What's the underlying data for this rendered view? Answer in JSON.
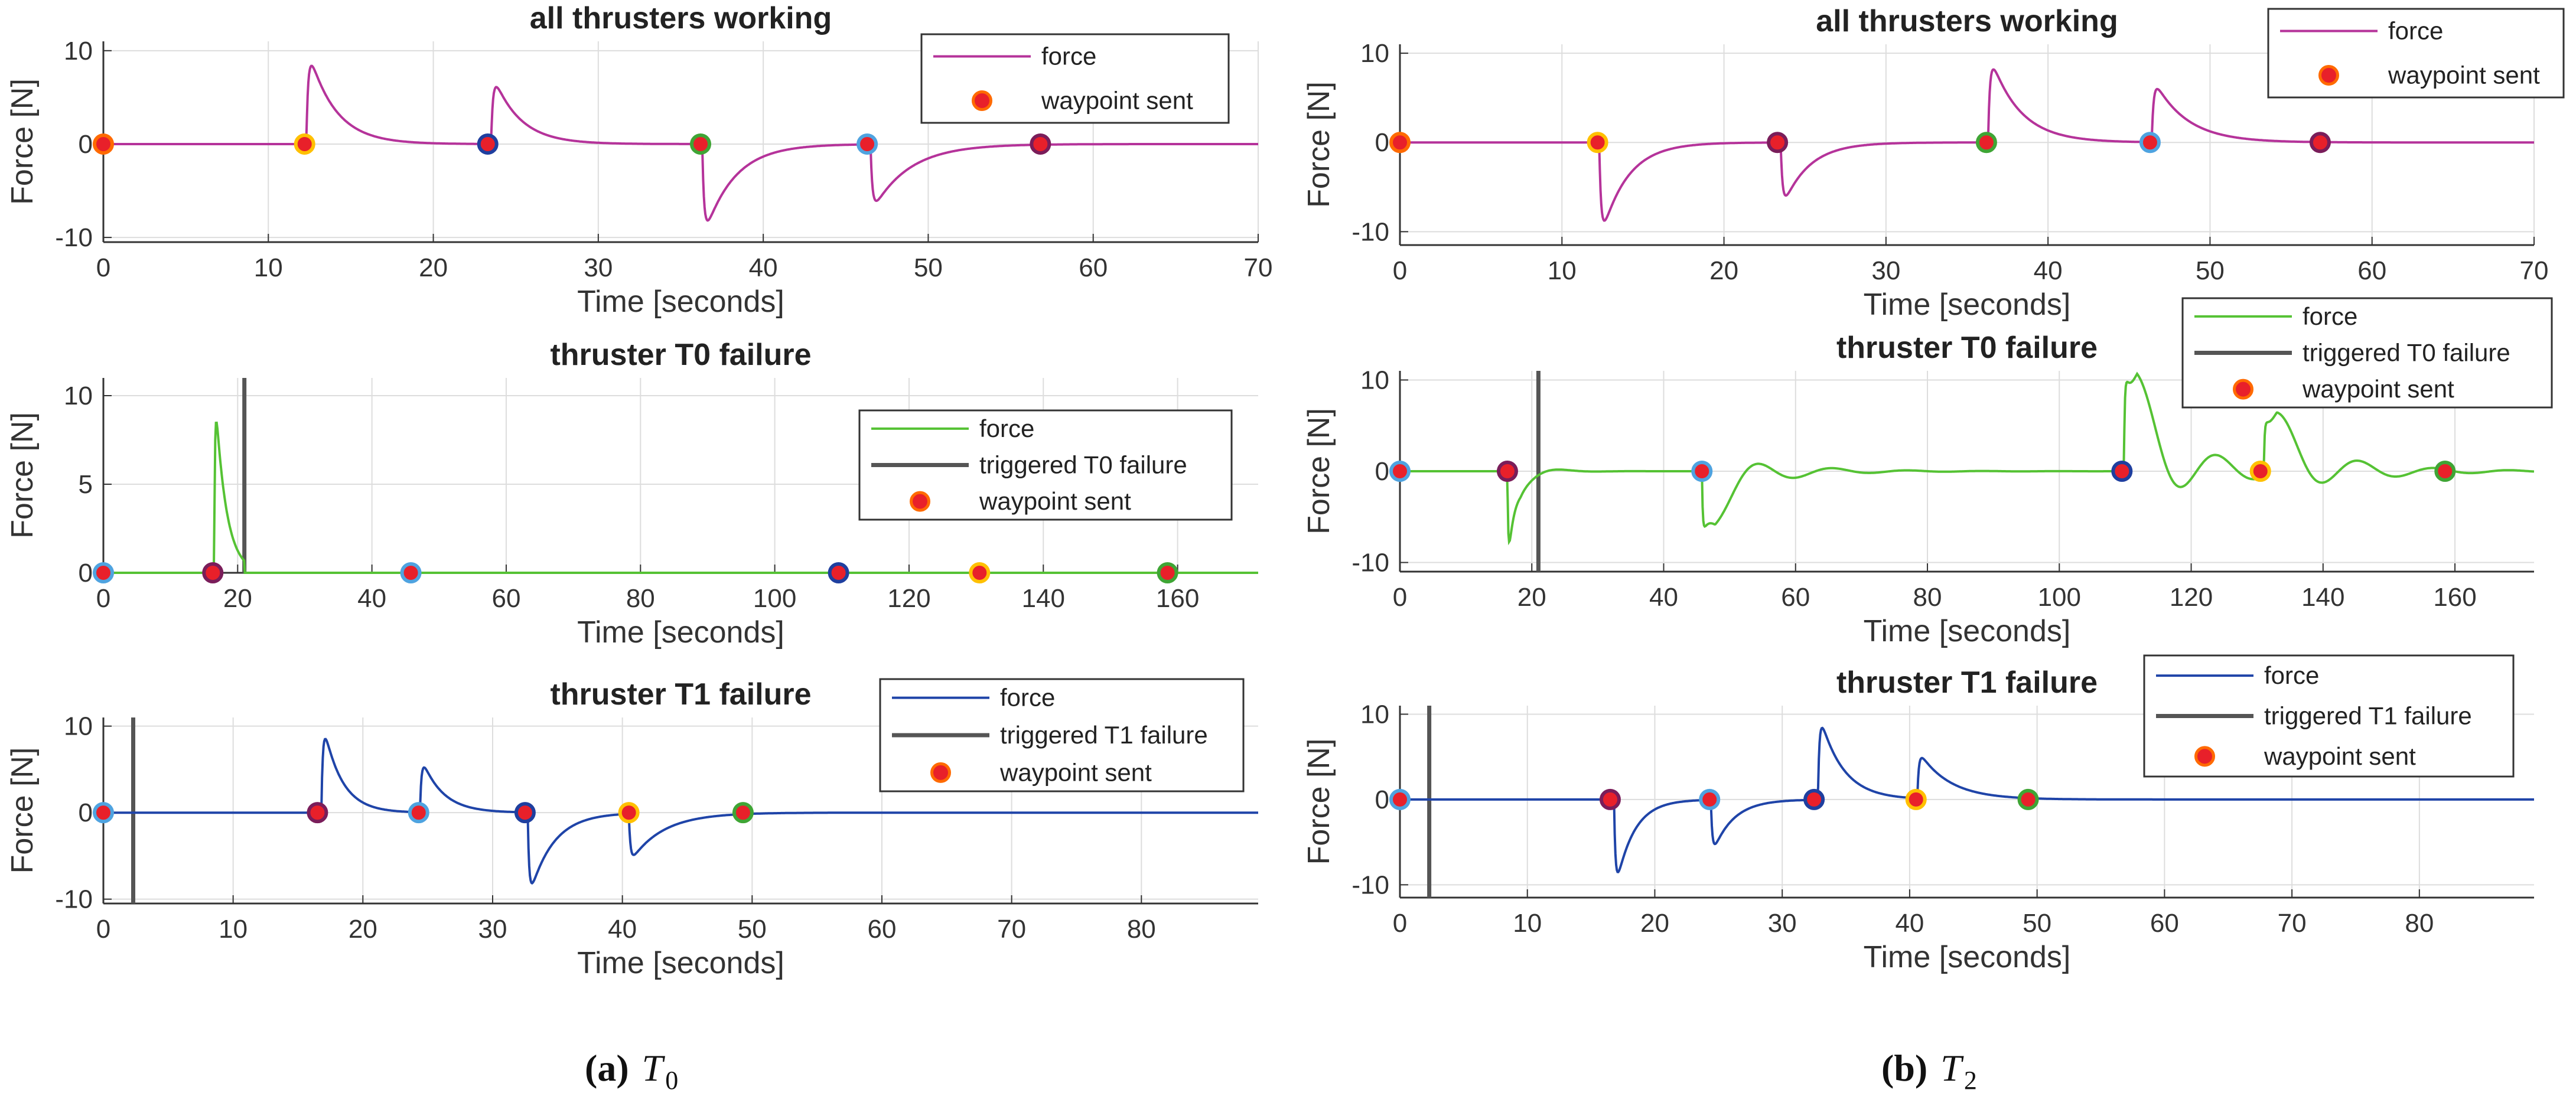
{
  "chart_data": [
    {
      "type": "line",
      "panel": "a",
      "title": "all thrusters working",
      "xlabel": "Time [seconds]",
      "ylabel": "Force [N]",
      "xlim": [
        0,
        70
      ],
      "ylim": [
        -10.5,
        11
      ],
      "xticks": [
        0,
        10,
        20,
        30,
        40,
        50,
        60,
        70
      ],
      "yticks": [
        -10,
        0,
        10
      ],
      "grid": true,
      "legend": {
        "position": "top-right",
        "entries": [
          "force",
          "waypoint sent"
        ]
      },
      "series": [
        {
          "name": "force",
          "color": "#b5339a",
          "pulses": [
            {
              "t": 12.3,
              "amp": 11,
              "tau": 1.6
            },
            {
              "t": 23.5,
              "amp": 8,
              "tau": 1.6
            },
            {
              "t": 36.3,
              "amp": -10.5,
              "tau": 1.8
            },
            {
              "t": 46.5,
              "amp": -7.5,
              "tau": 2.2
            }
          ]
        }
      ],
      "waypoints": [
        {
          "x": 0,
          "y": 0,
          "ring": "#ff6a00"
        },
        {
          "x": 12.2,
          "y": 0,
          "ring": "#ffc000"
        },
        {
          "x": 23.3,
          "y": 0,
          "ring": "#1f3f9f"
        },
        {
          "x": 36.2,
          "y": 0,
          "ring": "#3fa535"
        },
        {
          "x": 46.3,
          "y": 0,
          "ring": "#4fa3e0"
        },
        {
          "x": 56.8,
          "y": 0,
          "ring": "#7a1d5a"
        }
      ]
    },
    {
      "type": "line",
      "panel": "a",
      "title": "thruster T0 failure",
      "xlabel": "Time [seconds]",
      "ylabel": "Force [N]",
      "xlim": [
        0,
        172
      ],
      "ylim": [
        0,
        11
      ],
      "xticks": [
        0,
        20,
        40,
        60,
        80,
        100,
        120,
        140,
        160
      ],
      "yticks": [
        0,
        5,
        10
      ],
      "grid": true,
      "legend": {
        "position": "right",
        "entries": [
          "force",
          "triggered T0 failure",
          "waypoint sent"
        ]
      },
      "failure_time": 21,
      "series": [
        {
          "name": "force",
          "color": "#55c234",
          "pulses": [
            {
              "t": 16.5,
              "amp": 11.2,
              "tau": 1.6
            }
          ],
          "cutoff": 21
        }
      ],
      "waypoints": [
        {
          "x": 0,
          "y": 0,
          "ring": "#4fa3e0"
        },
        {
          "x": 16.3,
          "y": 0,
          "ring": "#7a1d5a"
        },
        {
          "x": 45.8,
          "y": 0,
          "ring": "#4fa3e0"
        },
        {
          "x": 109.5,
          "y": 0,
          "ring": "#1f3f9f"
        },
        {
          "x": 130.5,
          "y": 0,
          "ring": "#ffc000"
        },
        {
          "x": 158.5,
          "y": 0,
          "ring": "#3fa535"
        }
      ]
    },
    {
      "type": "line",
      "panel": "a",
      "title": "thruster T1 failure",
      "xlabel": "Time [seconds]",
      "ylabel": "Force [N]",
      "xlim": [
        0,
        89
      ],
      "ylim": [
        -10.5,
        11
      ],
      "xticks": [
        0,
        10,
        20,
        30,
        40,
        50,
        60,
        70,
        80
      ],
      "yticks": [
        -10,
        0,
        10
      ],
      "grid": true,
      "legend": {
        "position": "top-right",
        "entries": [
          "force",
          "triggered T1 failure",
          "waypoint sent"
        ]
      },
      "failure_time": 2.3,
      "series": [
        {
          "name": "force",
          "color": "#1f44a8",
          "pulses": [
            {
              "t": 16.8,
              "amp": 11.5,
              "tau": 1.4
            },
            {
              "t": 24.4,
              "amp": 6.8,
              "tau": 1.6
            },
            {
              "t": 32.7,
              "amp": -10.5,
              "tau": 1.8
            },
            {
              "t": 40.5,
              "amp": -5.8,
              "tau": 2.5
            }
          ]
        }
      ],
      "waypoints": [
        {
          "x": 0,
          "y": 0,
          "ring": "#4fa3e0"
        },
        {
          "x": 16.5,
          "y": 0,
          "ring": "#7a1d5a"
        },
        {
          "x": 24.3,
          "y": 0,
          "ring": "#4fa3e0"
        },
        {
          "x": 32.5,
          "y": 0,
          "ring": "#1f3f9f"
        },
        {
          "x": 40.5,
          "y": 0,
          "ring": "#ffc000"
        },
        {
          "x": 49.3,
          "y": 0,
          "ring": "#3fa535"
        }
      ]
    },
    {
      "type": "line",
      "panel": "b",
      "title": "all thrusters working",
      "xlabel": "Time [seconds]",
      "ylabel": "Force [N]",
      "xlim": [
        0,
        70
      ],
      "ylim": [
        -11.5,
        11
      ],
      "xticks": [
        0,
        10,
        20,
        30,
        40,
        50,
        60,
        70
      ],
      "yticks": [
        -10,
        0,
        10
      ],
      "grid": true,
      "legend": {
        "position": "top-right",
        "entries": [
          "force",
          "waypoint sent"
        ]
      },
      "series": [
        {
          "name": "force",
          "color": "#b5339a",
          "pulses": [
            {
              "t": 12.3,
              "amp": -11.5,
              "tau": 1.6
            },
            {
              "t": 23.5,
              "amp": -7.8,
              "tau": 1.6
            },
            {
              "t": 36.3,
              "amp": 10.5,
              "tau": 1.8
            },
            {
              "t": 46.4,
              "amp": 7.5,
              "tau": 2.0
            }
          ]
        }
      ],
      "waypoints": [
        {
          "x": 0,
          "y": 0,
          "ring": "#ff6a00"
        },
        {
          "x": 12.2,
          "y": 0,
          "ring": "#ffc000"
        },
        {
          "x": 23.3,
          "y": 0,
          "ring": "#7a1d5a"
        },
        {
          "x": 36.2,
          "y": 0,
          "ring": "#3fa535"
        },
        {
          "x": 46.3,
          "y": 0,
          "ring": "#4fa3e0"
        },
        {
          "x": 56.8,
          "y": 0,
          "ring": "#7a1d5a"
        }
      ]
    },
    {
      "type": "line",
      "panel": "b",
      "title": "thruster T0 failure",
      "xlabel": "Time [seconds]",
      "ylabel": "Force [N]",
      "xlim": [
        0,
        172
      ],
      "ylim": [
        -11,
        11
      ],
      "xticks": [
        0,
        20,
        40,
        60,
        80,
        100,
        120,
        140,
        160
      ],
      "yticks": [
        -10,
        0,
        10
      ],
      "grid": true,
      "legend": {
        "position": "top-right",
        "entries": [
          "force",
          "triggered T0 failure",
          "waypoint sent"
        ]
      },
      "failure_time": 21,
      "series": [
        {
          "name": "force",
          "color": "#55c234",
          "pulses": [
            {
              "t": 16.3,
              "amp": -11,
              "tau": 1.1,
              "osc": 0.2
            },
            {
              "t": 45.8,
              "amp": -7,
              "tau": 3,
              "osc": 0.45
            },
            {
              "t": 109.8,
              "amp": 11,
              "tau": 3.5,
              "osc": 0.55
            },
            {
              "t": 131,
              "amp": 6.5,
              "tau": 3.5,
              "osc": 0.55
            }
          ]
        }
      ],
      "waypoints": [
        {
          "x": 0,
          "y": 0,
          "ring": "#4fa3e0"
        },
        {
          "x": 16.3,
          "y": 0,
          "ring": "#7a1d5a"
        },
        {
          "x": 45.8,
          "y": 0,
          "ring": "#4fa3e0"
        },
        {
          "x": 109.5,
          "y": 0,
          "ring": "#1f3f9f"
        },
        {
          "x": 130.5,
          "y": 0,
          "ring": "#ffc000"
        },
        {
          "x": 158.5,
          "y": 0,
          "ring": "#3fa535"
        }
      ]
    },
    {
      "type": "line",
      "panel": "b",
      "title": "thruster T1 failure",
      "xlabel": "Time [seconds]",
      "ylabel": "Force [N]",
      "xlim": [
        0,
        89
      ],
      "ylim": [
        -11.5,
        11
      ],
      "xticks": [
        0,
        10,
        20,
        30,
        40,
        50,
        60,
        70,
        80
      ],
      "yticks": [
        -10,
        0,
        10
      ],
      "grid": true,
      "legend": {
        "position": "top-right",
        "entries": [
          "force",
          "triggered T1 failure",
          "waypoint sent"
        ]
      },
      "failure_time": 2.3,
      "series": [
        {
          "name": "force",
          "color": "#1f44a8",
          "pulses": [
            {
              "t": 16.8,
              "amp": -11.5,
              "tau": 1.4
            },
            {
              "t": 24.4,
              "amp": -6.8,
              "tau": 1.6
            },
            {
              "t": 32.8,
              "amp": 10.8,
              "tau": 1.8
            },
            {
              "t": 40.6,
              "amp": 5.8,
              "tau": 2.4
            }
          ]
        }
      ],
      "waypoints": [
        {
          "x": 0,
          "y": 0,
          "ring": "#4fa3e0"
        },
        {
          "x": 16.5,
          "y": 0,
          "ring": "#7a1d5a"
        },
        {
          "x": 24.3,
          "y": 0,
          "ring": "#4fa3e0"
        },
        {
          "x": 32.5,
          "y": 0,
          "ring": "#1f3f9f"
        },
        {
          "x": 40.5,
          "y": 0,
          "ring": "#ffc000"
        },
        {
          "x": 49.3,
          "y": 0,
          "ring": "#3fa535"
        }
      ]
    }
  ],
  "captions": {
    "a": {
      "label": "(a)",
      "symbol": "T",
      "sub": "0"
    },
    "b": {
      "label": "(b)",
      "symbol": "T",
      "sub": "2"
    }
  },
  "colors": {
    "waypoint_fill": "#e8202a",
    "failure_line": "#555555",
    "grid": "#dddddd",
    "axis": "#333333"
  }
}
